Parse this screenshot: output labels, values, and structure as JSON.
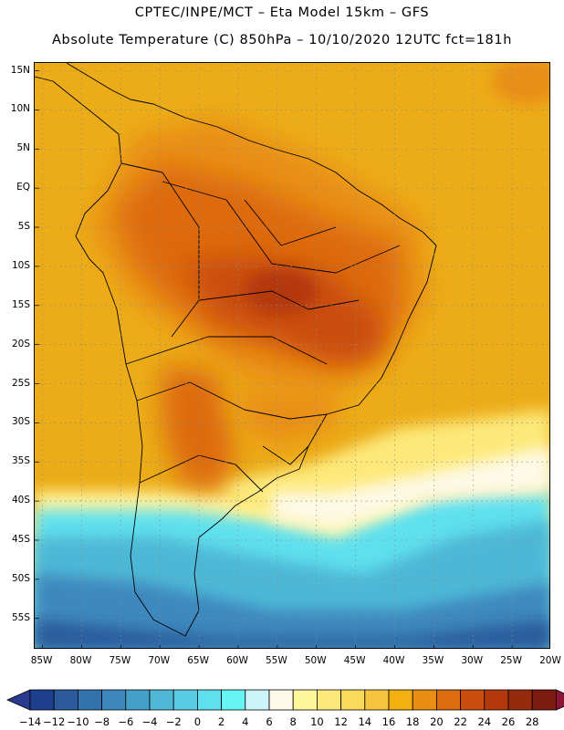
{
  "header": {
    "line1": "CPTEC/INPE/MCT –  Eta Model 15km – GFS",
    "line2": "Absolute Temperature (C) 850hPa – 10/10/2020 12UTC fct=181h"
  },
  "map": {
    "lon_range": [
      -86,
      -20
    ],
    "lat_range": [
      -59,
      16
    ],
    "gridlines": "dotted",
    "lat_ticks": [
      {
        "value": 15,
        "label": "15N"
      },
      {
        "value": 10,
        "label": "10N"
      },
      {
        "value": 5,
        "label": "5N"
      },
      {
        "value": 0,
        "label": "EQ"
      },
      {
        "value": -5,
        "label": "5S"
      },
      {
        "value": -10,
        "label": "10S"
      },
      {
        "value": -15,
        "label": "15S"
      },
      {
        "value": -20,
        "label": "20S"
      },
      {
        "value": -25,
        "label": "25S"
      },
      {
        "value": -30,
        "label": "30S"
      },
      {
        "value": -35,
        "label": "35S"
      },
      {
        "value": -40,
        "label": "40S"
      },
      {
        "value": -45,
        "label": "45S"
      },
      {
        "value": -50,
        "label": "50S"
      },
      {
        "value": -55,
        "label": "55S"
      }
    ],
    "lon_ticks": [
      {
        "value": -85,
        "label": "85W"
      },
      {
        "value": -80,
        "label": "80W"
      },
      {
        "value": -75,
        "label": "75W"
      },
      {
        "value": -70,
        "label": "70W"
      },
      {
        "value": -65,
        "label": "65W"
      },
      {
        "value": -60,
        "label": "60W"
      },
      {
        "value": -55,
        "label": "55W"
      },
      {
        "value": -50,
        "label": "50W"
      },
      {
        "value": -45,
        "label": "45W"
      },
      {
        "value": -40,
        "label": "40W"
      },
      {
        "value": -35,
        "label": "35W"
      },
      {
        "value": -30,
        "label": "30W"
      },
      {
        "value": -25,
        "label": "25W"
      },
      {
        "value": -20,
        "label": "20W"
      }
    ]
  },
  "colorbar": {
    "levels": [
      {
        "label": "-14",
        "color": "#1e3f8e"
      },
      {
        "label": "-12",
        "color": "#2b5b9c"
      },
      {
        "label": "-10",
        "color": "#3273ae"
      },
      {
        "label": "-8",
        "color": "#3c88be"
      },
      {
        "label": "-6",
        "color": "#44a0c8"
      },
      {
        "label": "-4",
        "color": "#4eb8d6"
      },
      {
        "label": "-2",
        "color": "#58cce4"
      },
      {
        "label": "0",
        "color": "#5fe0ee"
      },
      {
        "label": "2",
        "color": "#66f5f5"
      },
      {
        "label": "4",
        "color": "#cdf4fb"
      },
      {
        "label": "6",
        "color": "#fdf9e6"
      },
      {
        "label": "8",
        "color": "#fff59a"
      },
      {
        "label": "10",
        "color": "#fde97a"
      },
      {
        "label": "12",
        "color": "#fbd95a"
      },
      {
        "label": "14",
        "color": "#f6c540"
      },
      {
        "label": "16",
        "color": "#f2b110"
      },
      {
        "label": "18",
        "color": "#e98e12"
      },
      {
        "label": "20",
        "color": "#dd6b10"
      },
      {
        "label": "22",
        "color": "#c94d0c"
      },
      {
        "label": "24",
        "color": "#b3380b"
      },
      {
        "label": "26",
        "color": "#962a0d"
      },
      {
        "label": "28",
        "color": "#7a1c0f"
      }
    ],
    "under_color": "#2a3a8e",
    "over_color": "#8e1535"
  }
}
